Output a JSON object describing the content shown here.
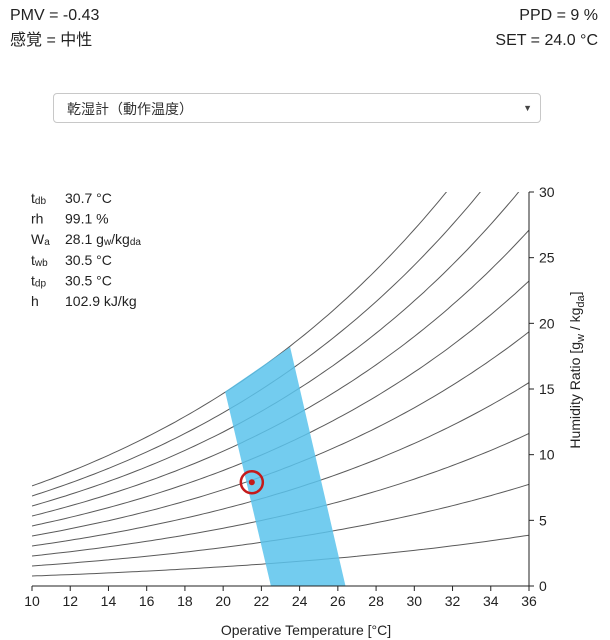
{
  "header": {
    "pmv": "PMV = -0.43",
    "sensation": "感覚 = 中性",
    "ppd": "PPD = 9 %",
    "set": "SET = 24.0 °C"
  },
  "selector": {
    "value": "乾湿計（動作温度）",
    "caret": "▼"
  },
  "properties": [
    {
      "symbol": "t",
      "sub": "db",
      "value": "30.7 °C"
    },
    {
      "symbol": "rh",
      "sub": "",
      "value": "99.1 %"
    },
    {
      "symbol": "W",
      "sub": "a",
      "value": "28.1 g",
      "value_sub1": "w",
      "value_mid": "/kg",
      "value_sub2": "da"
    },
    {
      "symbol": "t",
      "sub": "wb",
      "value": "30.5 °C"
    },
    {
      "symbol": "t",
      "sub": "dp",
      "value": "30.5 °C"
    },
    {
      "symbol": "h",
      "sub": "",
      "value": "102.9 kJ/kg"
    }
  ],
  "chart_data": {
    "type": "line",
    "xlabel": "Operative Temperature [°C]",
    "ylabel_parts": [
      "Humidity Ratio [g",
      "w",
      " / kg",
      "da",
      "]"
    ],
    "xlim": [
      10,
      36
    ],
    "ylim": [
      0,
      30
    ],
    "x_ticks": [
      10,
      12,
      14,
      16,
      18,
      20,
      22,
      24,
      26,
      28,
      30,
      32,
      34,
      36
    ],
    "y_ticks": [
      0,
      5,
      10,
      15,
      20,
      25,
      30
    ],
    "rh_curves": [
      0.1,
      0.2,
      0.3,
      0.4,
      0.5,
      0.6,
      0.7,
      0.8,
      0.9,
      1.0
    ],
    "comfort_zone": [
      [
        22.5,
        0
      ],
      [
        26.4,
        0
      ],
      [
        23.5,
        18.2
      ],
      [
        20.1,
        14.8
      ]
    ],
    "current_point": {
      "x": 21.5,
      "y": 7.9
    },
    "colors": {
      "comfort_zone": "#5bc3ec",
      "marker": "#c41a1a",
      "curve": "#5a5a5a",
      "axis": "#222222"
    }
  }
}
